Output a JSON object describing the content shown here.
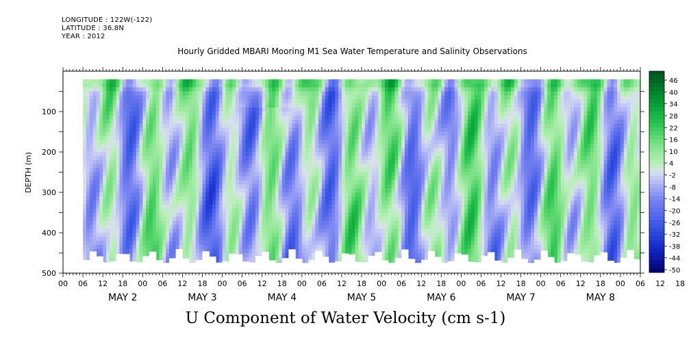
{
  "header": {
    "longitude": "LONGITUDE : 122W(-122)",
    "latitude": "LATITUDE : 36.8N",
    "year": "YEAR : 2012",
    "title": "Hourly Gridded MBARI Mooring M1 Sea Water Temperature and Salinity Observations"
  },
  "chart_data": {
    "type": "heatmap",
    "title": "Hourly Gridded MBARI Mooring M1 Sea Water Temperature and Salinity Observations",
    "xlabel": "U Component of Water Velocity (cm s-1)",
    "ylabel": "DEPTH (m)",
    "x_axis": {
      "unit": "hours since 2012-05-01 18:00",
      "range_hours": [
        0,
        174
      ],
      "hour_ticks": [
        "00",
        "06",
        "12",
        "18",
        "00",
        "06",
        "12",
        "18",
        "00",
        "06",
        "12",
        "18",
        "00",
        "06",
        "12",
        "18",
        "00",
        "06",
        "12",
        "18",
        "00",
        "06",
        "12",
        "18",
        "00",
        "06",
        "12",
        "18",
        "00",
        "06",
        "12",
        "18"
      ],
      "day_labels": [
        "MAY  2",
        "MAY  3",
        "MAY  4",
        "MAY  5",
        "MAY  6",
        "MAY  7",
        "MAY  8"
      ]
    },
    "y_axis": {
      "range": [
        500,
        0
      ],
      "ticks": [
        100,
        200,
        300,
        400,
        500
      ],
      "reversed": true
    },
    "colorbar": {
      "labels": [
        "46",
        "40",
        "34",
        "28",
        "22",
        "16",
        "10",
        "4",
        "-2",
        "-8",
        "-14",
        "-20",
        "-26",
        "-32",
        "-38",
        "-44",
        "-50"
      ],
      "min": -50,
      "max": 50
    },
    "data_start_hour": 6,
    "data_depth_range": [
      20,
      490
    ]
  }
}
